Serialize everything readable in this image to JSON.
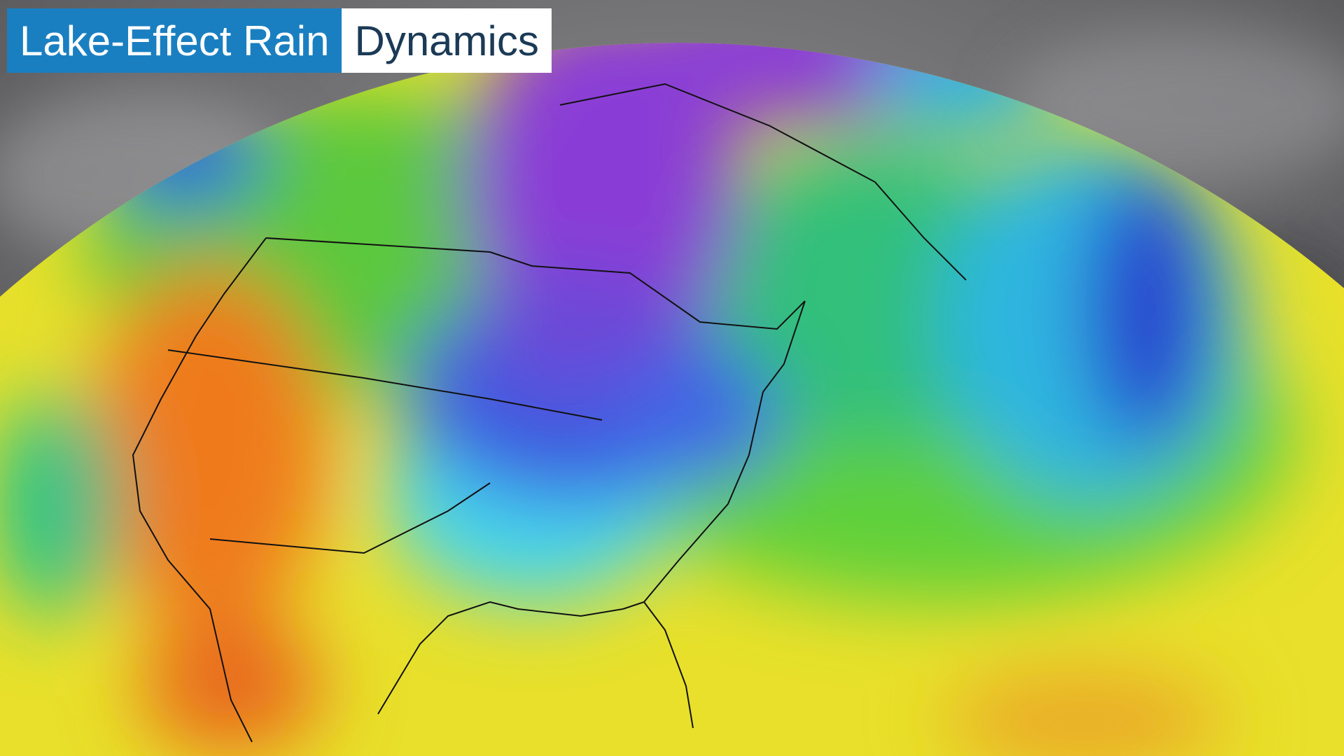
{
  "title": {
    "highlight": "Lake-Effect Rain",
    "rest": "Dynamics"
  }
}
